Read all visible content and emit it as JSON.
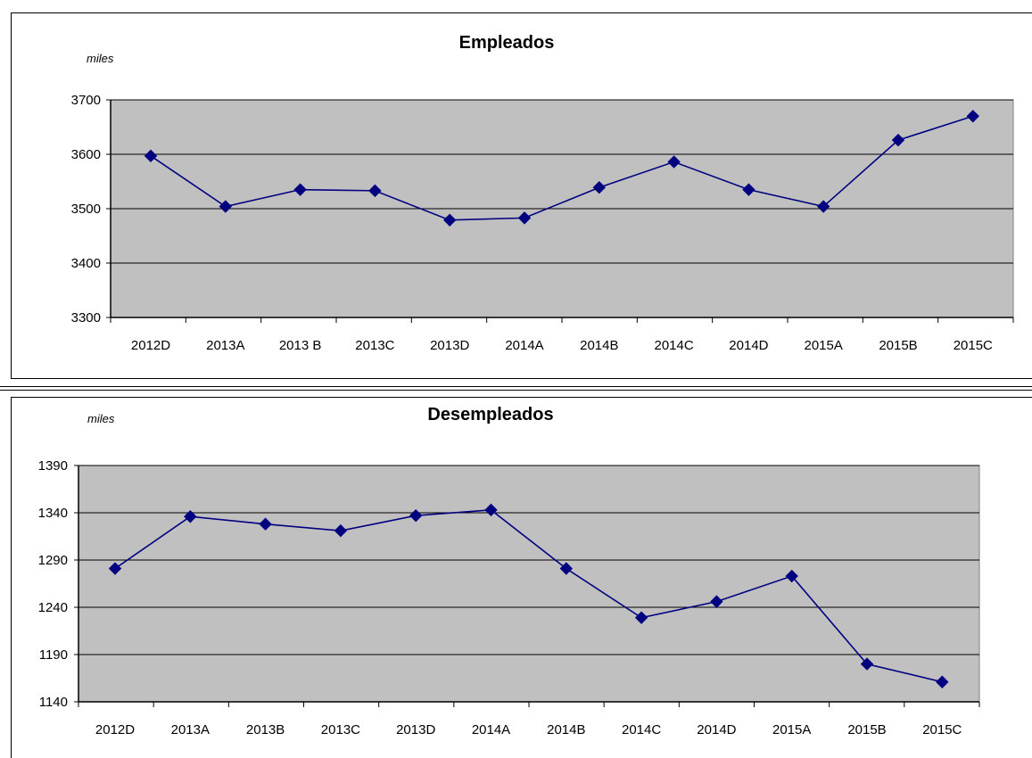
{
  "chart_data": [
    {
      "type": "line",
      "title": "Empleados",
      "ylabel": "miles",
      "xlabel": "",
      "categories": [
        "2012D",
        "2013A",
        "2013 B",
        "2013C",
        "2013D",
        "2014A",
        "2014B",
        "2014C",
        "2014D",
        "2015A",
        "2015B",
        "2015C"
      ],
      "series": [
        {
          "values": [
            3597,
            3504,
            3535,
            3533,
            3479,
            3483,
            3539,
            3586,
            3535,
            3504,
            3626,
            3670
          ]
        }
      ],
      "ylim": [
        3300,
        3700
      ],
      "yticks": [
        3300,
        3400,
        3500,
        3600,
        3700
      ],
      "grid": true,
      "plot_bg": "#c0c0c0",
      "line_color": "#000080"
    },
    {
      "type": "line",
      "title": "Desempleados",
      "ylabel": "miles",
      "xlabel": "",
      "categories": [
        "2012D",
        "2013A",
        "2013B",
        "2013C",
        "2013D",
        "2014A",
        "2014B",
        "2014C",
        "2014D",
        "2015A",
        "2015B",
        "2015C"
      ],
      "series": [
        {
          "values": [
            1281,
            1336,
            1328,
            1321,
            1337,
            1343,
            1281,
            1229,
            1246,
            1273,
            1180,
            1161
          ]
        }
      ],
      "ylim": [
        1140,
        1390
      ],
      "yticks": [
        1140,
        1190,
        1240,
        1290,
        1340,
        1390
      ],
      "grid": true,
      "plot_bg": "#c0c0c0",
      "line_color": "#000080"
    }
  ]
}
